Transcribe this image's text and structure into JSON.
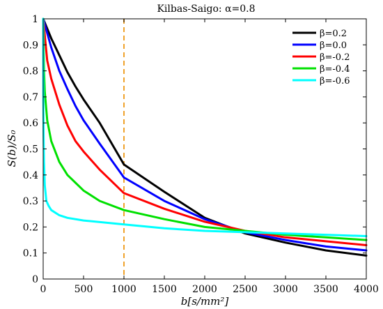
{
  "chart_data": {
    "type": "line",
    "title": "Kilbas-Saigo:  α=0.8",
    "xlabel": "b[s/mm²]",
    "ylabel": "S(b)/S₀",
    "xlim": [
      0,
      4000
    ],
    "ylim": [
      0,
      1
    ],
    "x_ticks": [
      "0",
      "500",
      "1000",
      "1500",
      "2000",
      "2500",
      "3000",
      "3500",
      "4000"
    ],
    "y_ticks": [
      "0",
      "0.1",
      "0.2",
      "0.3",
      "0.4",
      "0.5",
      "0.6",
      "0.7",
      "0.8",
      "0.9",
      "1"
    ],
    "grid": false,
    "legend_position": "top-right",
    "reference_line": {
      "x": 1000,
      "color": "#f0a22a",
      "style": "dashed"
    },
    "series": [
      {
        "name": "β=0.2",
        "color": "#000000",
        "x": [
          0,
          100,
          200,
          300,
          400,
          500,
          700,
          1000,
          1500,
          2000,
          2500,
          3000,
          3500,
          4000
        ],
        "y": [
          1.0,
          0.925,
          0.86,
          0.795,
          0.74,
          0.69,
          0.6,
          0.44,
          0.335,
          0.235,
          0.175,
          0.14,
          0.11,
          0.09
        ]
      },
      {
        "name": "β=0.0",
        "color": "#0000ff",
        "x": [
          0,
          100,
          200,
          300,
          400,
          500,
          700,
          1000,
          1500,
          2000,
          2500,
          3000,
          3500,
          4000
        ],
        "y": [
          1.0,
          0.89,
          0.8,
          0.73,
          0.665,
          0.61,
          0.52,
          0.39,
          0.3,
          0.23,
          0.18,
          0.15,
          0.125,
          0.11
        ]
      },
      {
        "name": "β=-0.2",
        "color": "#ff0000",
        "x": [
          0,
          50,
          100,
          200,
          300,
          400,
          500,
          700,
          1000,
          1500,
          2000,
          2500,
          3000,
          3500,
          4000
        ],
        "y": [
          1.0,
          0.84,
          0.77,
          0.67,
          0.59,
          0.53,
          0.49,
          0.42,
          0.33,
          0.27,
          0.22,
          0.185,
          0.16,
          0.145,
          0.13
        ]
      },
      {
        "name": "β=-0.4",
        "color": "#00e000",
        "x": [
          0,
          10,
          20,
          50,
          100,
          200,
          300,
          400,
          500,
          700,
          1000,
          1500,
          2000,
          2500,
          3000,
          3500,
          4000
        ],
        "y": [
          1.0,
          0.8,
          0.72,
          0.61,
          0.53,
          0.45,
          0.4,
          0.37,
          0.34,
          0.3,
          0.265,
          0.23,
          0.2,
          0.185,
          0.17,
          0.16,
          0.15
        ]
      },
      {
        "name": "β=-0.6",
        "color": "#00ffff",
        "x": [
          0,
          2,
          5,
          10,
          20,
          40,
          70,
          100,
          200,
          300,
          500,
          1000,
          1500,
          2000,
          2500,
          3000,
          3500,
          4000
        ],
        "y": [
          1.0,
          0.7,
          0.55,
          0.45,
          0.36,
          0.3,
          0.28,
          0.265,
          0.245,
          0.235,
          0.225,
          0.21,
          0.195,
          0.185,
          0.18,
          0.175,
          0.17,
          0.165
        ]
      }
    ]
  }
}
